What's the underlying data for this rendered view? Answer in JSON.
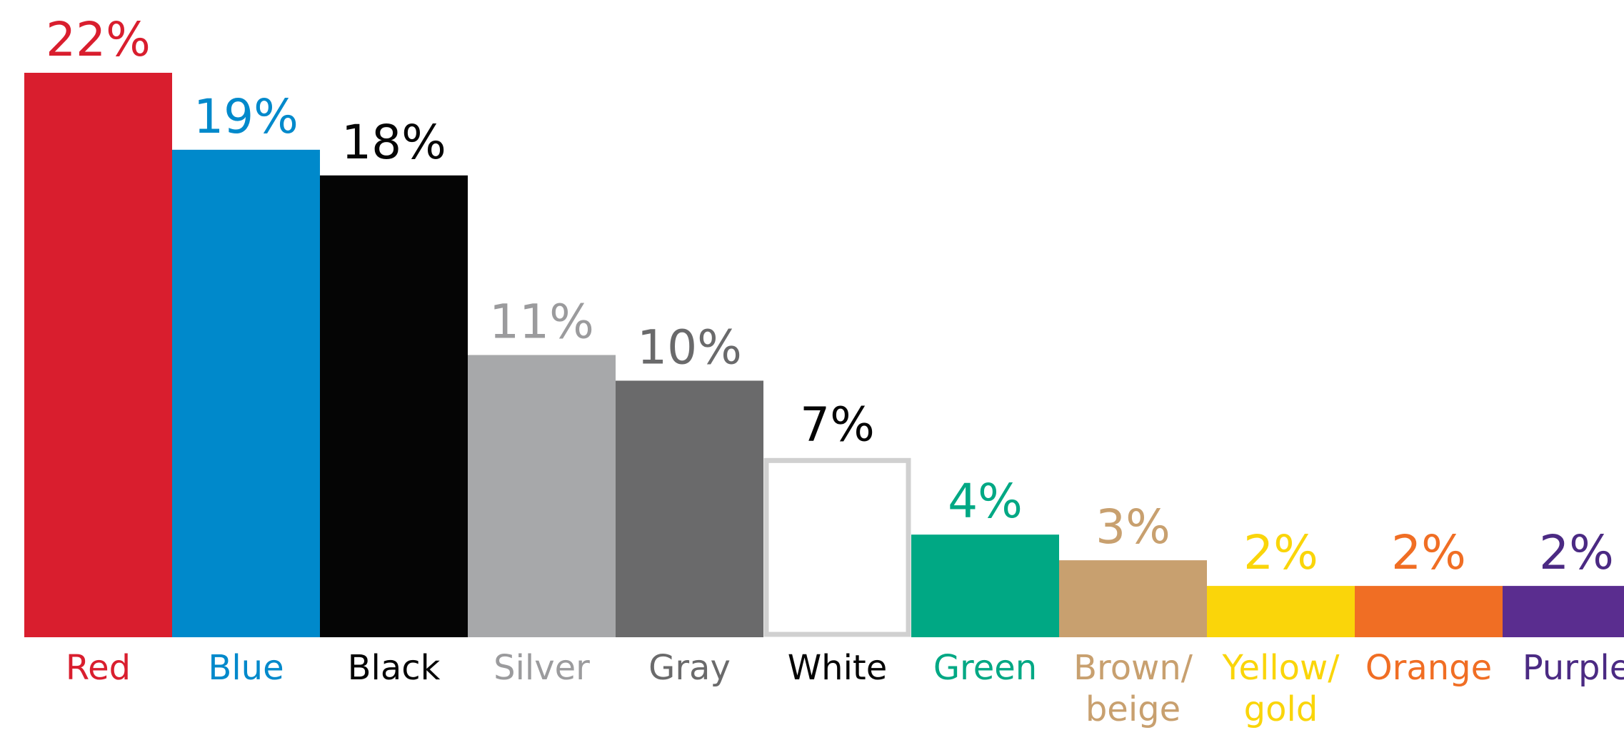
{
  "chart_data": {
    "type": "bar",
    "categories": [
      [
        "Red"
      ],
      [
        "Blue"
      ],
      [
        "Black"
      ],
      [
        "Silver"
      ],
      [
        "Gray"
      ],
      [
        "White"
      ],
      [
        "Green"
      ],
      [
        "Brown/",
        "beige"
      ],
      [
        "Yellow/",
        "gold"
      ],
      [
        "Orange"
      ],
      [
        "Purple"
      ]
    ],
    "values": [
      22,
      19,
      18,
      11,
      10,
      7,
      4,
      3,
      2,
      2,
      2
    ],
    "value_labels": [
      "22%",
      "19%",
      "18%",
      "11%",
      "10%",
      "7%",
      "4%",
      "3%",
      "2%",
      "2%",
      "2%"
    ],
    "unit": "%",
    "colors": {
      "bars": [
        "#D91E2E",
        "#0089CB",
        "#050505",
        "#A7A8AA",
        "#6A6A6B",
        "#FFFFFF",
        "#00A884",
        "#C8A06F",
        "#FAD50A",
        "#F06E24",
        "#5A2D8F"
      ],
      "labels": [
        "#D91E2E",
        "#0089CB",
        "#050505",
        "#9B9B9D",
        "#6A6A6B",
        "#050505",
        "#00A884",
        "#C8A06F",
        "#FAD50A",
        "#F06E24",
        "#4B2A83"
      ],
      "white_bar_outline": "#D0D0D0"
    },
    "ylim": [
      0,
      22
    ],
    "grid": false,
    "legend": "none",
    "title": "",
    "xlabel": "",
    "ylabel": ""
  }
}
